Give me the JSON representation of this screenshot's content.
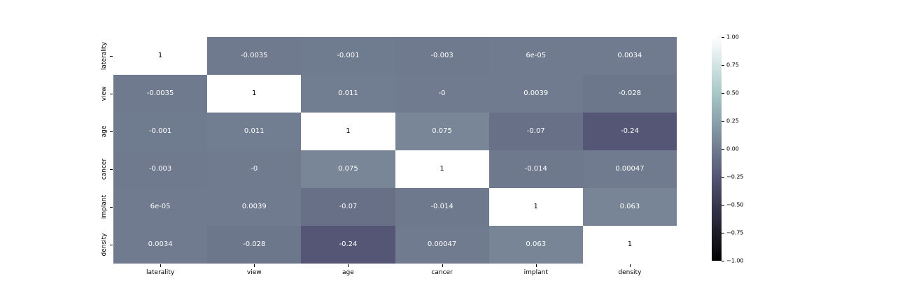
{
  "chart_data": {
    "type": "heatmap",
    "title": "",
    "categories": [
      "laterality",
      "view",
      "age",
      "cancer",
      "implant",
      "density"
    ],
    "matrix": [
      [
        "1",
        "-0.0035",
        "-0.001",
        "-0.003",
        "6e-05",
        "0.0034"
      ],
      [
        "-0.0035",
        "1",
        "0.011",
        "-0",
        "0.0039",
        "-0.028"
      ],
      [
        "-0.001",
        "0.011",
        "1",
        "0.075",
        "-0.07",
        "-0.24"
      ],
      [
        "-0.003",
        "-0",
        "0.075",
        "1",
        "-0.014",
        "0.00047"
      ],
      [
        "6e-05",
        "0.0039",
        "-0.07",
        "-0.014",
        "1",
        "0.063"
      ],
      [
        "0.0034",
        "-0.028",
        "-0.24",
        "0.00047",
        "0.063",
        "1"
      ]
    ],
    "values": [
      [
        1,
        -0.0035,
        -0.001,
        -0.003,
        6e-05,
        0.0034
      ],
      [
        -0.0035,
        1,
        0.011,
        0,
        0.0039,
        -0.028
      ],
      [
        -0.001,
        0.011,
        1,
        0.075,
        -0.07,
        -0.24
      ],
      [
        -0.003,
        0,
        0.075,
        1,
        -0.014,
        0.00047
      ],
      [
        6e-05,
        0.0039,
        -0.07,
        -0.014,
        1,
        0.063
      ],
      [
        0.0034,
        -0.028,
        -0.24,
        0.00047,
        0.063,
        1
      ]
    ],
    "colormap": "bone",
    "vmin": -1,
    "vmax": 1,
    "grid": false,
    "legend_position": "right-colorbar",
    "colorbar_ticks": [
      "1.00",
      "0.75",
      "0.50",
      "0.25",
      "0.00",
      "−0.25",
      "−0.50",
      "−0.75",
      "−1.00"
    ],
    "colorbar_tick_values": [
      1.0,
      0.75,
      0.5,
      0.25,
      0.0,
      -0.25,
      -0.5,
      -0.75,
      -1.0
    ]
  },
  "colors": {
    "background": "#ffffff",
    "cell_midpoint": "#707b8f",
    "annotation_light": "#ffffff",
    "annotation_dark": "#000000",
    "tick": "#000000"
  }
}
